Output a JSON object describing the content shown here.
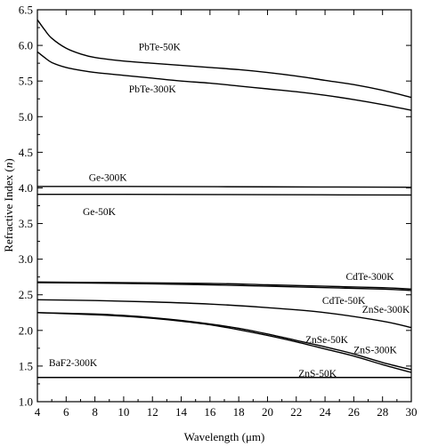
{
  "chart_data": {
    "type": "line",
    "xlabel": "Wavelength (μm)",
    "ylabel_main": "Refractive Index (",
    "ylabel_var": "n",
    "ylabel_end": ")",
    "xlim": [
      4,
      30
    ],
    "ylim": [
      1.0,
      6.5
    ],
    "xticks": [
      4,
      6,
      8,
      10,
      12,
      14,
      16,
      18,
      20,
      22,
      24,
      26,
      28,
      30
    ],
    "yticks": [
      1.0,
      1.5,
      2.0,
      2.5,
      3.0,
      3.5,
      4.0,
      4.5,
      5.0,
      5.5,
      6.0,
      6.5
    ],
    "ytick_labels": [
      "1.0",
      "1.5",
      "2.0",
      "2.5",
      "3.0",
      "3.5",
      "4.0",
      "4.5",
      "5.0",
      "5.5",
      "6.0",
      "6.5"
    ],
    "grid": false,
    "series": [
      {
        "name": "PbTe-50K",
        "x": [
          4,
          4.5,
          5,
          6,
          7,
          8,
          10,
          12,
          14,
          16,
          18,
          20,
          22,
          24,
          26,
          28,
          30
        ],
        "y": [
          6.36,
          6.22,
          6.1,
          5.96,
          5.88,
          5.83,
          5.78,
          5.75,
          5.72,
          5.69,
          5.66,
          5.62,
          5.57,
          5.51,
          5.45,
          5.37,
          5.27
        ]
      },
      {
        "name": "PbTe-300K",
        "x": [
          4,
          4.5,
          5,
          6,
          7,
          8,
          10,
          12,
          14,
          16,
          18,
          20,
          22,
          24,
          26,
          28,
          30
        ],
        "y": [
          5.91,
          5.83,
          5.76,
          5.69,
          5.65,
          5.62,
          5.58,
          5.54,
          5.5,
          5.47,
          5.43,
          5.39,
          5.35,
          5.3,
          5.24,
          5.17,
          5.09
        ]
      },
      {
        "name": "Ge-300K",
        "x": [
          4,
          10,
          20,
          30
        ],
        "y": [
          4.02,
          4.02,
          4.015,
          4.01
        ]
      },
      {
        "name": "Ge-50K",
        "x": [
          4,
          10,
          20,
          30
        ],
        "y": [
          3.91,
          3.91,
          3.905,
          3.9
        ]
      },
      {
        "name": "CdTe-300K",
        "x": [
          4,
          10,
          16,
          20,
          24,
          28,
          30
        ],
        "y": [
          2.68,
          2.67,
          2.66,
          2.64,
          2.62,
          2.6,
          2.58
        ]
      },
      {
        "name": "CdTe-50K",
        "x": [
          4,
          10,
          16,
          20,
          24,
          28,
          30
        ],
        "y": [
          2.67,
          2.66,
          2.64,
          2.62,
          2.6,
          2.58,
          2.56
        ]
      },
      {
        "name": "ZnSe-300K",
        "x": [
          4,
          8,
          12,
          16,
          20,
          24,
          28,
          30
        ],
        "y": [
          2.43,
          2.42,
          2.4,
          2.37,
          2.32,
          2.25,
          2.13,
          2.04
        ]
      },
      {
        "name": "ZnSe-50K",
        "x": [
          4,
          8,
          10,
          12,
          14,
          16,
          18,
          20,
          22,
          24,
          26,
          28,
          30
        ],
        "y": [
          2.25,
          2.23,
          2.21,
          2.18,
          2.14,
          2.09,
          2.03,
          1.95,
          1.86,
          1.77,
          1.67,
          1.55,
          1.45
        ]
      },
      {
        "name": "ZnS-300K",
        "x": [
          4,
          8,
          10,
          12,
          14,
          16,
          18,
          20,
          22,
          24,
          26,
          28,
          30
        ],
        "y": [
          2.25,
          2.22,
          2.2,
          2.17,
          2.13,
          2.08,
          2.01,
          1.93,
          1.84,
          1.74,
          1.64,
          1.52,
          1.41
        ]
      },
      {
        "name": "BaF2-300K",
        "x": [
          4,
          10,
          20,
          30
        ],
        "y": [
          1.34,
          1.34,
          1.34,
          1.34
        ]
      }
    ],
    "labels": [
      {
        "text": "PbTe-50K",
        "x": 12.5,
        "y": 5.98,
        "anchor": "middle"
      },
      {
        "text": "PbTe-300K",
        "x": 12.0,
        "y": 5.39,
        "anchor": "middle"
      },
      {
        "text": "Ge-300K",
        "x": 8.9,
        "y": 4.15,
        "anchor": "middle"
      },
      {
        "text": "Ge-50K",
        "x": 8.3,
        "y": 3.67,
        "anchor": "middle"
      },
      {
        "text": "CdTe-300K",
        "x": 28.8,
        "y": 2.76,
        "anchor": "end"
      },
      {
        "text": "CdTe-50K",
        "x": 26.8,
        "y": 2.42,
        "anchor": "end"
      },
      {
        "text": "ZnSe-300K",
        "x": 29.9,
        "y": 2.3,
        "anchor": "end"
      },
      {
        "text": "ZnSe-50K",
        "x": 25.6,
        "y": 1.87,
        "anchor": "end"
      },
      {
        "text": "ZnS-300K",
        "x": 29.0,
        "y": 1.73,
        "anchor": "end"
      },
      {
        "text": "ZnS-50K",
        "x": 24.8,
        "y": 1.4,
        "anchor": "end"
      },
      {
        "text": "BaF2-300K",
        "x": 4.8,
        "y": 1.55,
        "anchor": "start"
      }
    ]
  }
}
